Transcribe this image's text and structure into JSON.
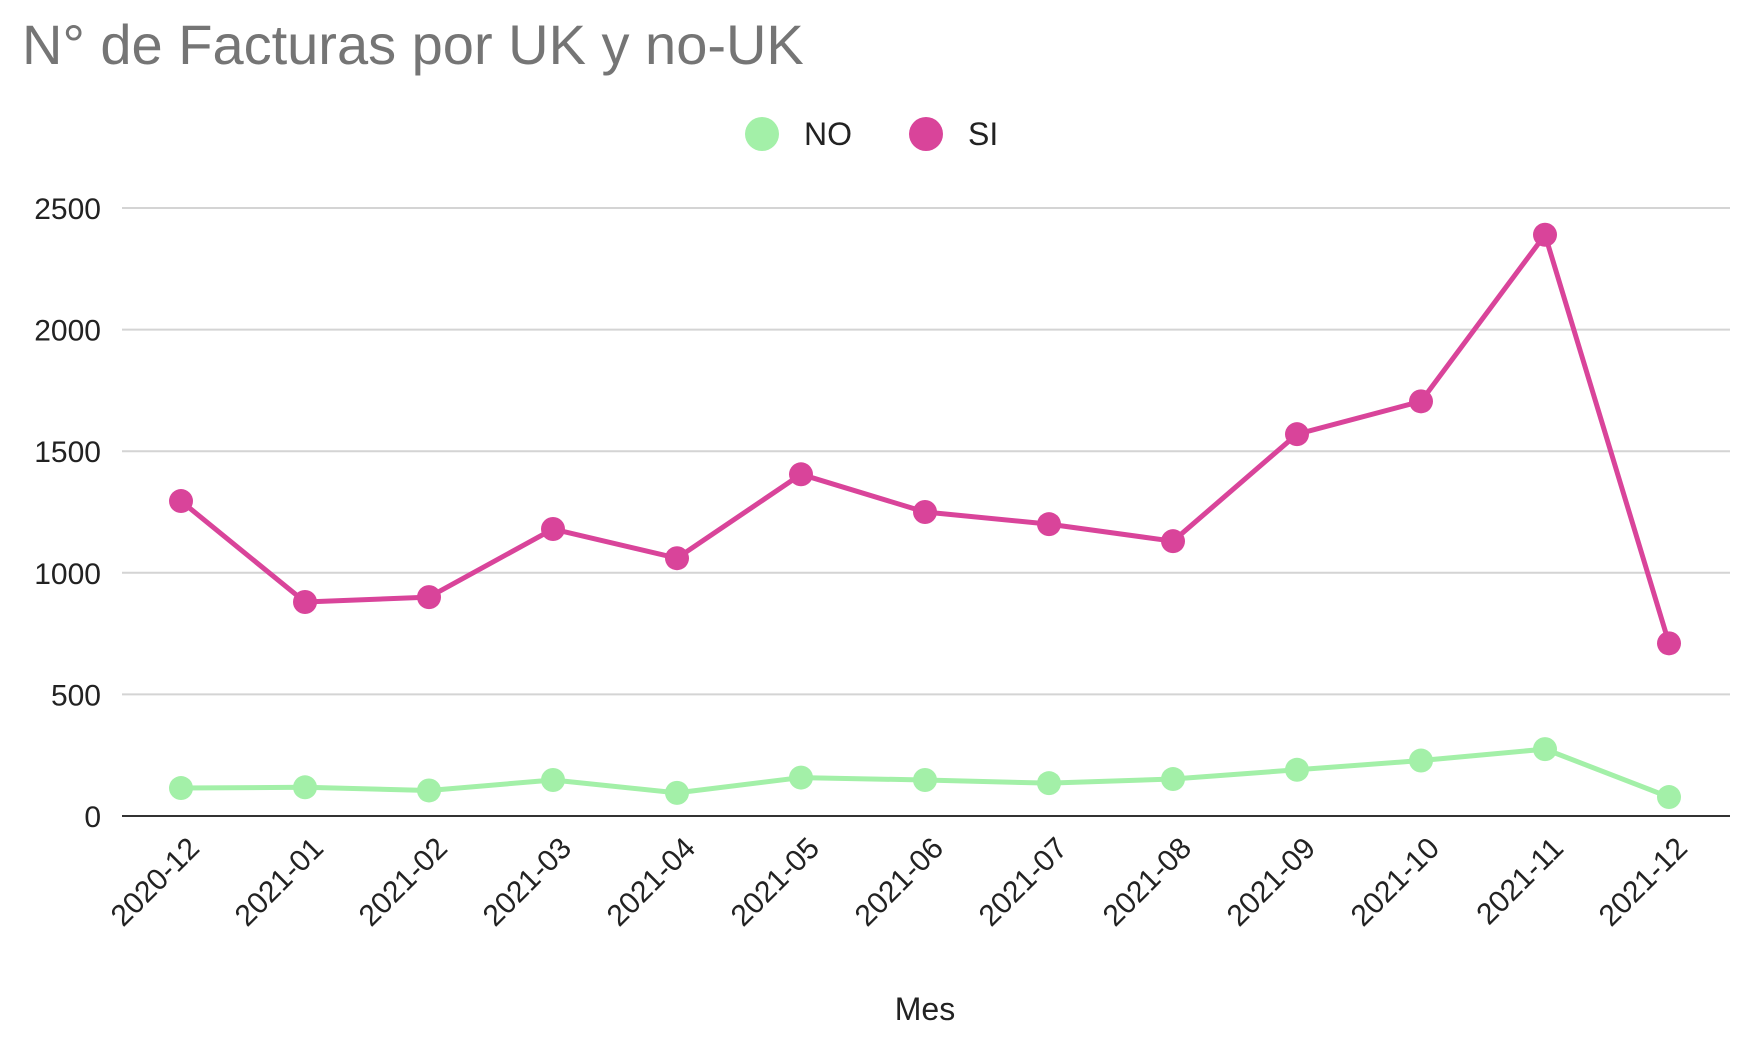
{
  "chart_data": {
    "type": "line",
    "title": "N° de Facturas por UK y no-UK",
    "xlabel": "Mes",
    "ylabel": "",
    "ylim": [
      0,
      2500
    ],
    "yticks": [
      0,
      500,
      1000,
      1500,
      2000,
      2500
    ],
    "grid": true,
    "legend_position": "top-center",
    "categories": [
      "2020-12",
      "2021-01",
      "2021-02",
      "2021-03",
      "2021-04",
      "2021-05",
      "2021-06",
      "2021-07",
      "2021-08",
      "2021-09",
      "2021-10",
      "2021-11",
      "2021-12"
    ],
    "series": [
      {
        "name": "NO",
        "color": "#a3f0a8",
        "values": [
          115,
          118,
          105,
          148,
          95,
          158,
          148,
          135,
          152,
          190,
          228,
          275,
          78
        ]
      },
      {
        "name": "SI",
        "color": "#d9449a",
        "values": [
          1295,
          880,
          900,
          1180,
          1060,
          1405,
          1250,
          1200,
          1130,
          1570,
          1705,
          2390,
          710
        ]
      }
    ]
  }
}
